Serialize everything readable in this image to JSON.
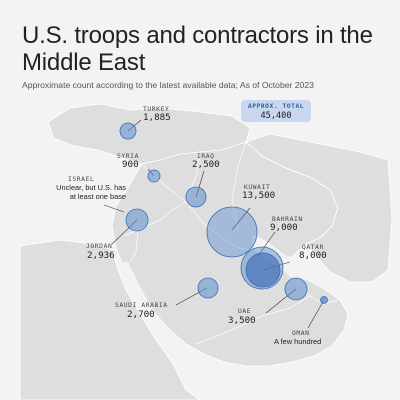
{
  "header": {
    "title": "U.S. troops and contractors in the Middle East",
    "subtitle": "Approximate count according to the latest available data; As of October 2023"
  },
  "total": {
    "label": "APPROX. TOTAL",
    "value": "45,400"
  },
  "colors": {
    "land": "#dedede",
    "border": "#ffffff",
    "bubble_fill": "#5b8fd0",
    "bubble_stroke": "#3a6db0",
    "bubble_highlight": "#2f5fb0"
  },
  "countries": {
    "turkey": {
      "name": "TURKEY",
      "count": "1,885"
    },
    "syria": {
      "name": "SYRIA",
      "count": "900"
    },
    "iraq": {
      "name": "IRAQ",
      "count": "2,500"
    },
    "kuwait": {
      "name": "KUWAIT",
      "count": "13,500"
    },
    "israel": {
      "name": "ISRAEL",
      "note_line1": "Unclear, but U.S. has",
      "note_line2": "at least one base"
    },
    "bahrain": {
      "name": "BAHRAIN",
      "count": "9,000"
    },
    "jordan": {
      "name": "JORDAN",
      "count": "2,936"
    },
    "qatar": {
      "name": "QATAR",
      "count": "8,000"
    },
    "saudi": {
      "name": "SAUDI ARABIA",
      "count": "2,700"
    },
    "uae": {
      "name": "UAE",
      "count": "3,500"
    },
    "oman": {
      "name": "OMAN",
      "note": "A few hundred"
    }
  }
}
